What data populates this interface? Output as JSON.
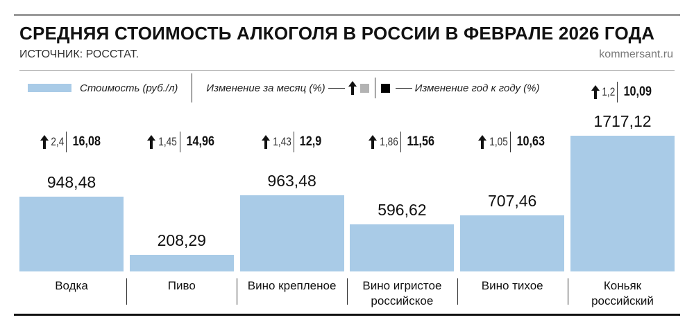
{
  "chart_data": {
    "type": "bar",
    "title": "СРЕДНЯЯ СТОИМОСТЬ АЛКОГОЛЯ В РОССИИ В ФЕВРАЛЕ 2026 ГОДА",
    "subtitle": "ИСТОЧНИК: РОССТАТ.",
    "source": "kommersant.ru",
    "categories": [
      "Водка",
      "Пиво",
      "Вино крепленое",
      "Вино игристое\nроссийское",
      "Вино тихое",
      "Коньяк\nроссийский"
    ],
    "series": [
      {
        "name": "Стоимость (руб./л)",
        "color": "#a9cbe7",
        "values": [
          948.48,
          208.29,
          963.48,
          596.62,
          707.46,
          1717.12
        ],
        "value_labels": [
          "948,48",
          "208,29",
          "963,48",
          "596,62",
          "707,46",
          "1717,12"
        ]
      },
      {
        "name": "Изменение за месяц (%)",
        "color": "#b3b3b3",
        "values": [
          2.4,
          1.45,
          1.43,
          1.86,
          1.05,
          1.2
        ],
        "value_labels": [
          "2,4",
          "1,45",
          "1,43",
          "1,86",
          "1,05",
          "1,2"
        ]
      },
      {
        "name": "Изменение год к году (%)",
        "color": "#000000",
        "values": [
          16.08,
          14.96,
          12.9,
          11.56,
          10.63,
          10.09
        ],
        "value_labels": [
          "16,08",
          "14,96",
          "12,9",
          "11,56",
          "10,63",
          "10,09"
        ]
      }
    ]
  }
}
